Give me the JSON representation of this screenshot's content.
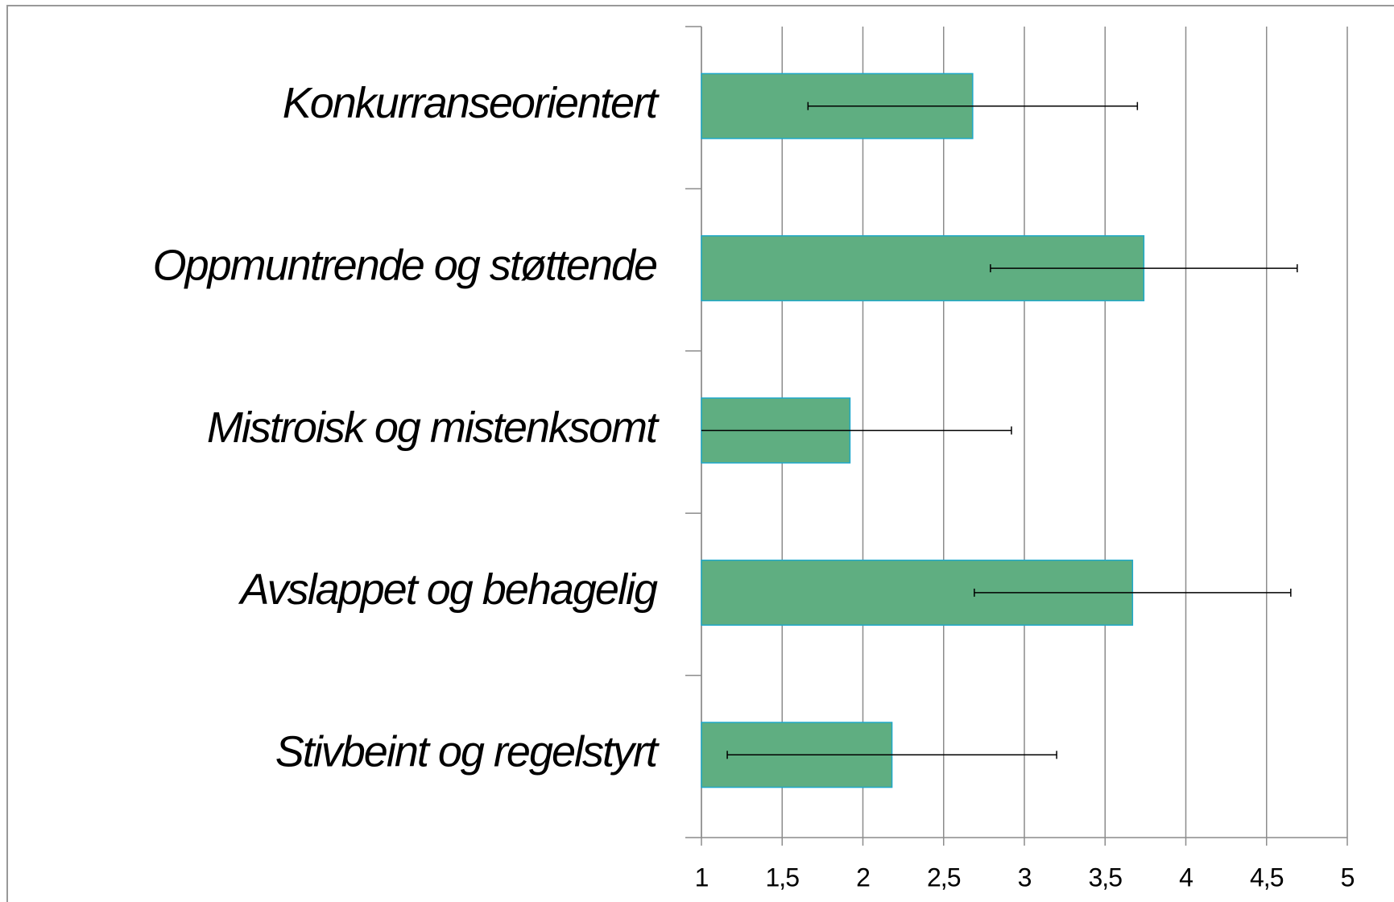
{
  "chart_data": {
    "type": "bar",
    "orientation": "horizontal",
    "categories": [
      "Konkurranseorientert",
      "Oppmuntrende og støttende",
      "Mistroisk og mistenksomt",
      "Avslappet og behagelig",
      "Stivbeint og regelstyrt"
    ],
    "values": [
      2.68,
      3.74,
      1.92,
      3.67,
      2.18
    ],
    "errors": [
      1.02,
      0.95,
      1.0,
      0.98,
      1.02
    ],
    "color": "#5fae81",
    "edge_color": "#1fa8c9",
    "xlim": [
      1,
      5
    ],
    "xticks": [
      1,
      {
        "value": 1.5,
        "label": "1,5"
      },
      2,
      {
        "value": 2.5,
        "label": "2,5"
      },
      3,
      {
        "value": 3.5,
        "label": "3,5"
      },
      4,
      {
        "value": 4.5,
        "label": "4,5"
      },
      5
    ],
    "grid": true
  }
}
